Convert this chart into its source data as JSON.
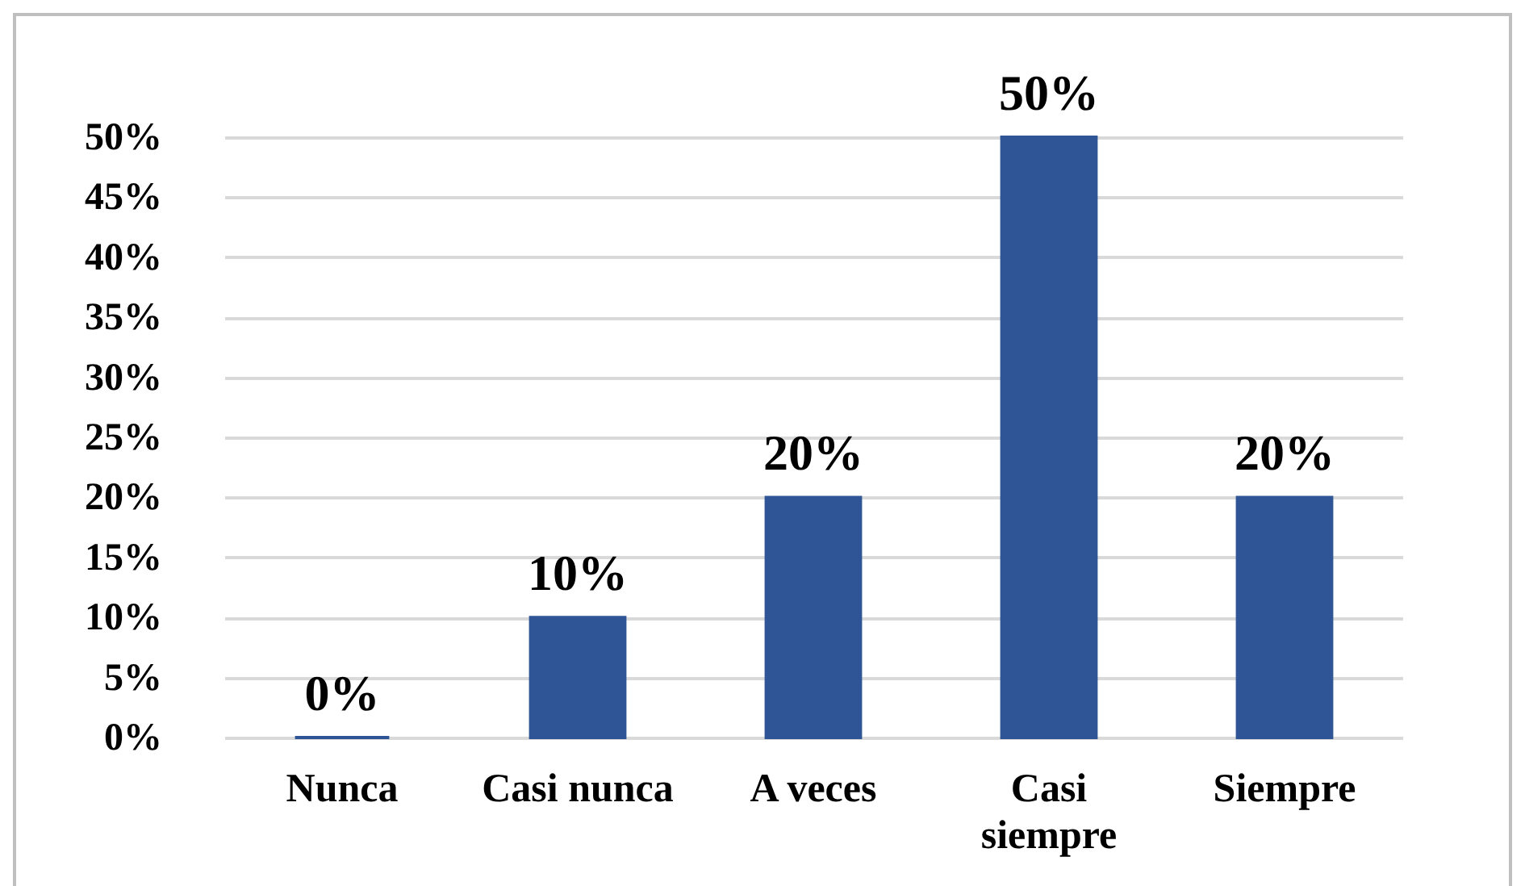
{
  "chart_data": {
    "type": "bar",
    "categories": [
      "Nunca",
      "Casi nunca",
      "A veces",
      "Casi siempre",
      "Siempre"
    ],
    "values": [
      0,
      10,
      20,
      50,
      20
    ],
    "value_labels": [
      "0%",
      "10%",
      "20%",
      "50%",
      "20%"
    ],
    "color": "#2f5597",
    "ylim": [
      0,
      50
    ],
    "yticks": [
      {
        "value": 0,
        "label": "0%"
      },
      {
        "value": 5,
        "label": "5%"
      },
      {
        "value": 10,
        "label": "10%"
      },
      {
        "value": 15,
        "label": "15%"
      },
      {
        "value": 20,
        "label": "20%"
      },
      {
        "value": 25,
        "label": "25%"
      },
      {
        "value": 30,
        "label": "30%"
      },
      {
        "value": 35,
        "label": "35%"
      },
      {
        "value": 40,
        "label": "40%"
      },
      {
        "value": 45,
        "label": "45%"
      },
      {
        "value": 50,
        "label": "50%"
      }
    ],
    "grid": "y"
  }
}
